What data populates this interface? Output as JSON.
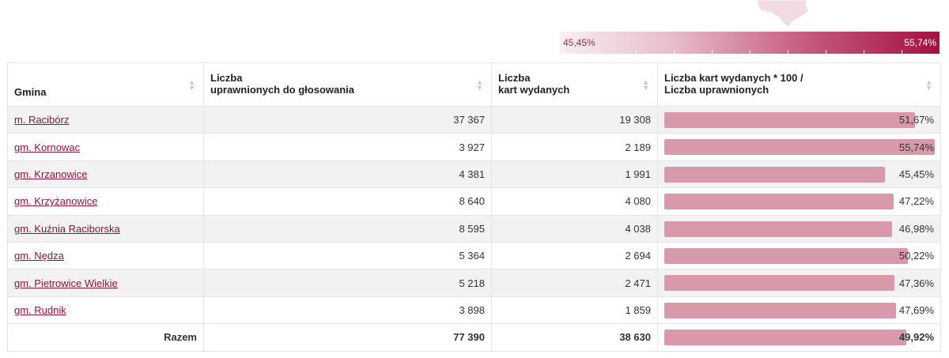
{
  "legend": {
    "min_label": "45,45%",
    "max_label": "55,74%",
    "min_color": "#f8eef1",
    "max_color": "#a3113f"
  },
  "table": {
    "headers": {
      "gmina": "Gmina",
      "uprawnieni_1": "Liczba",
      "uprawnieni_2": "uprawnionych do głosowania",
      "karty_1": "Liczba",
      "karty_2": "kart wydanych",
      "frekwencja_1": "Liczba kart wydanych * 100 /",
      "frekwencja_2": "Liczba uprawnionych"
    },
    "rows": [
      {
        "gmina": "m. Racibórz",
        "uprawnieni": "37 367",
        "karty": "19 308",
        "frekwencja": "51,67%",
        "value": 51.67
      },
      {
        "gmina": "gm. Kornowac",
        "uprawnieni": "3 927",
        "karty": "2 189",
        "frekwencja": "55,74%",
        "value": 55.74
      },
      {
        "gmina": "gm. Krzanowice",
        "uprawnieni": "4 381",
        "karty": "1 991",
        "frekwencja": "45,45%",
        "value": 45.45
      },
      {
        "gmina": "gm. Krzyżanowice",
        "uprawnieni": "8 640",
        "karty": "4 080",
        "frekwencja": "47,22%",
        "value": 47.22
      },
      {
        "gmina": "gm. Kuźnia Raciborska",
        "uprawnieni": "8 595",
        "karty": "4 038",
        "frekwencja": "46,98%",
        "value": 46.98
      },
      {
        "gmina": "gm. Nędza",
        "uprawnieni": "5 364",
        "karty": "2 694",
        "frekwencja": "50,22%",
        "value": 50.22
      },
      {
        "gmina": "gm. Pietrowice Wielkie",
        "uprawnieni": "5 218",
        "karty": "2 471",
        "frekwencja": "47,36%",
        "value": 47.36
      },
      {
        "gmina": "gm. Rudnik",
        "uprawnieni": "3 898",
        "karty": "1 859",
        "frekwencja": "47,69%",
        "value": 47.69
      }
    ],
    "total": {
      "label": "Razem",
      "uprawnieni": "77 390",
      "karty": "38 630",
      "frekwencja": "49,92%",
      "value": 49.92
    }
  },
  "colors": {
    "link": "#8e1438",
    "bar": "#d89aaa",
    "row_alt": "#f2f2f2"
  }
}
